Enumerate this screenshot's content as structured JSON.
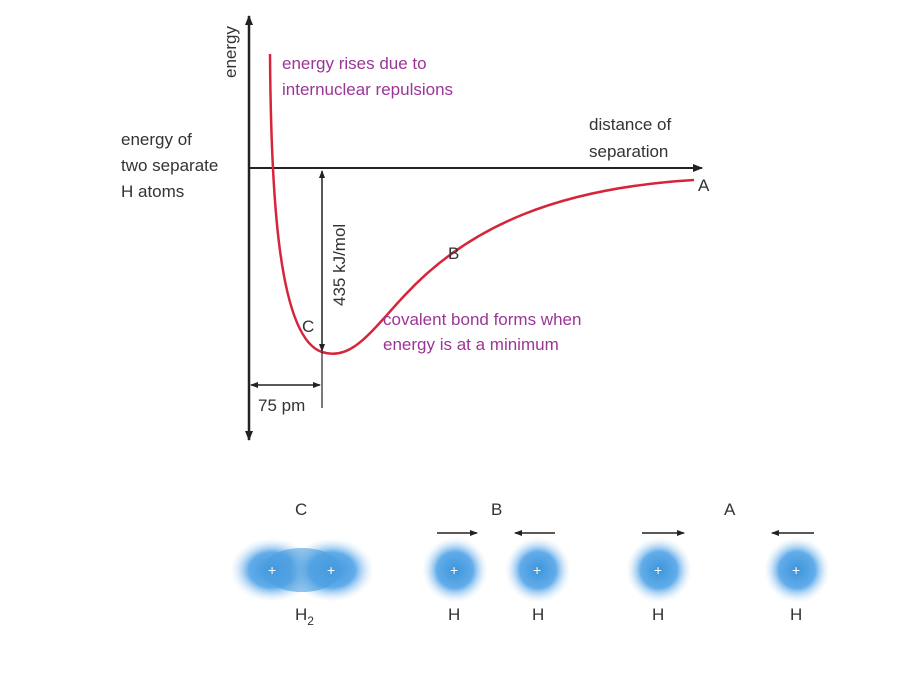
{
  "graph": {
    "y_axis_label": "energy",
    "x_axis_label": [
      "distance of",
      "separation"
    ],
    "reference_label": [
      "energy of",
      "two separate",
      "H atoms"
    ],
    "repulsion_note": [
      "energy rises due to",
      "internuclear repulsions"
    ],
    "minimum_note": [
      "covalent bond forms when",
      "energy is at a minimum"
    ],
    "point_labels": [
      "A",
      "B",
      "C"
    ],
    "bond_energy": "435 kJ/mol",
    "bond_length": "75 pm"
  },
  "molecules": [
    {
      "label": "C",
      "atoms": [
        {
          "charge": "+"
        },
        {
          "charge": "+"
        }
      ],
      "names": [
        {
          "name": "H",
          "subscript": "2"
        }
      ]
    },
    {
      "label": "B",
      "atoms": [
        {
          "charge": "+",
          "name": "H"
        },
        {
          "charge": "+",
          "name": "H"
        }
      ]
    },
    {
      "label": "A",
      "atoms": [
        {
          "charge": "+",
          "name": "H"
        },
        {
          "charge": "+",
          "name": "H"
        }
      ]
    }
  ]
}
